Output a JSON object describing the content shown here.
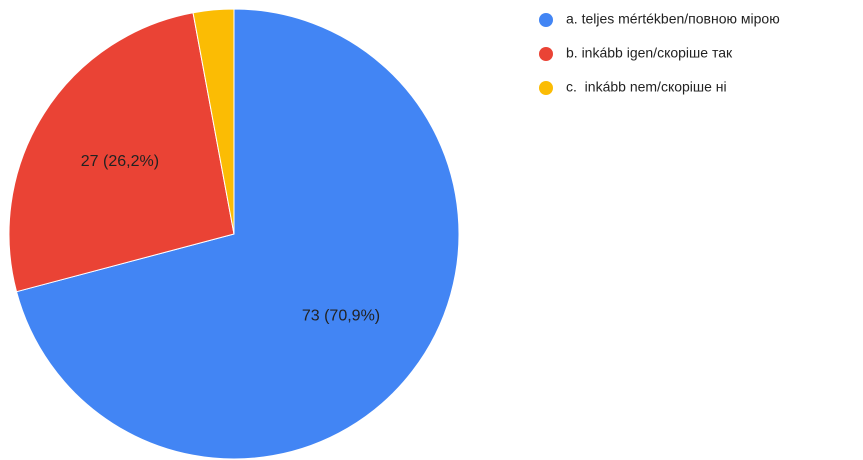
{
  "chart_data": {
    "type": "pie",
    "categories": [
      "a. teljes mértékben/повною мірою",
      "b. inkább igen/скоріше так",
      "c.  inkább nem/скоріше ні"
    ],
    "values": [
      73,
      27,
      3
    ],
    "value_labels": [
      "73 (70,9%)",
      "27 (26,2%)",
      null
    ],
    "colors": [
      "#4285f4",
      "#ea4335",
      "#fbbc04"
    ],
    "legend": "right"
  }
}
